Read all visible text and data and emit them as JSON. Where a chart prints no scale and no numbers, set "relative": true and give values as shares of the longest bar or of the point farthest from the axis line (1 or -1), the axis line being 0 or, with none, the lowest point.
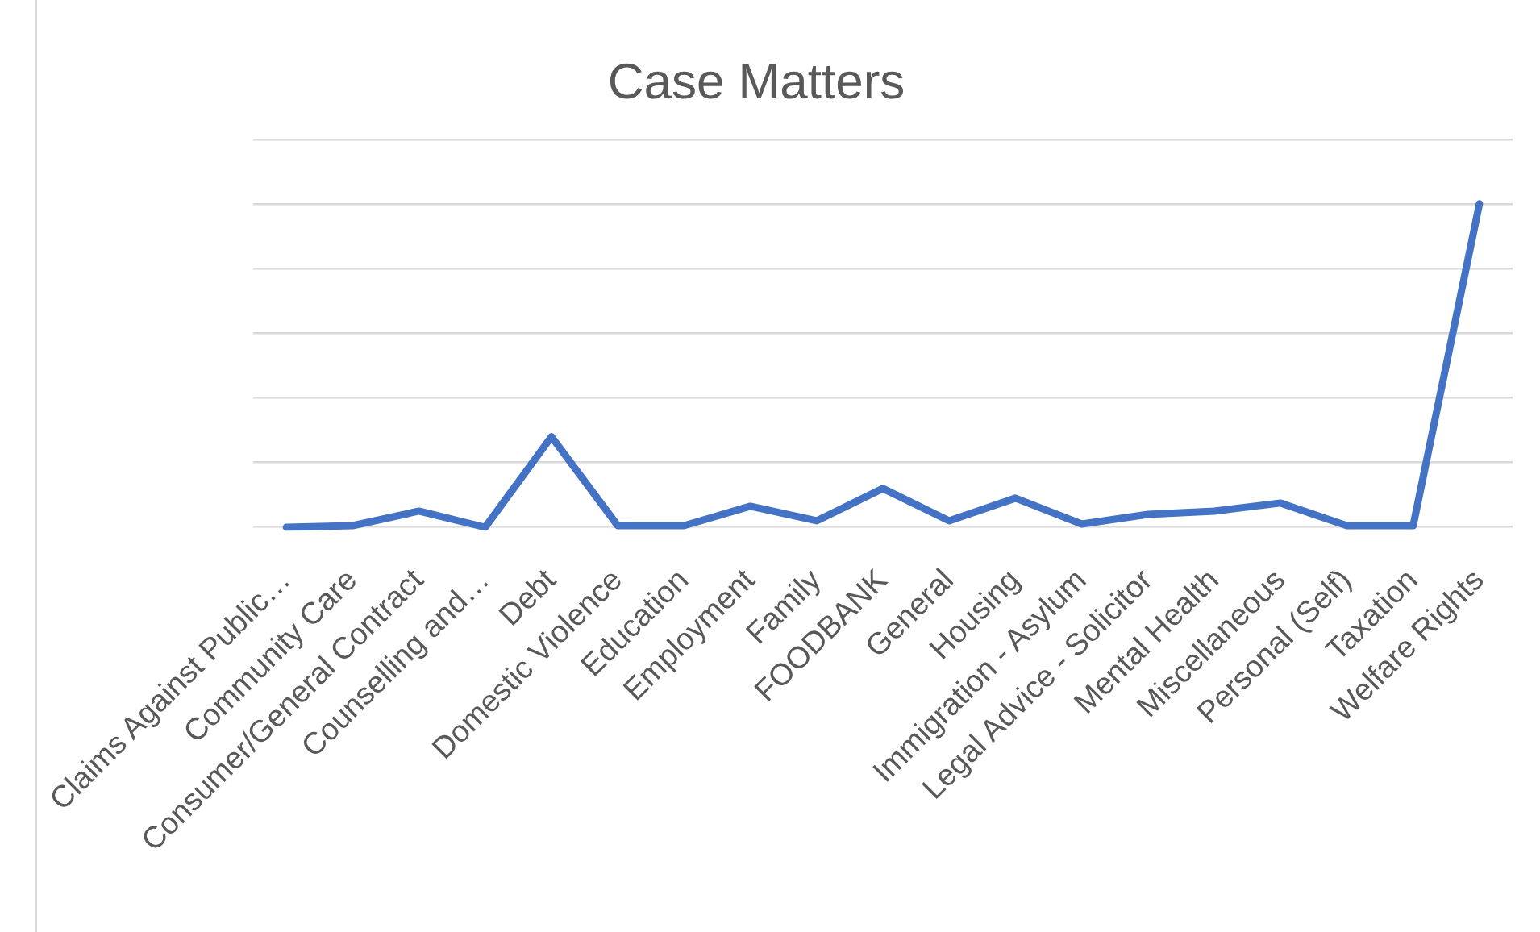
{
  "chart_data": {
    "type": "line",
    "title": "Case Matters",
    "categories": [
      "Claims Against Public…",
      "Community Care",
      "Consumer/General Contract",
      "Counselling and…",
      "Debt",
      "Domestic Violence",
      "Education",
      "Employment",
      "Family",
      "FOODBANK",
      "General",
      "Housing",
      "Immigration - Asylum",
      "Legal Advice - Solicitor",
      "Mental Health",
      "Miscellaneous",
      "Personal (Self)",
      "Taxation",
      "Welfare Rights"
    ],
    "series": [
      {
        "color": "#4472c4",
        "values": [
          0,
          0.005,
          0.05,
          0,
          0.28,
          0.005,
          0.005,
          0.065,
          0.02,
          0.12,
          0.02,
          0.09,
          0.01,
          0.04,
          0.05,
          0.075,
          0.005,
          0.005,
          1
        ]
      }
    ],
    "relative": true,
    "grid": "y",
    "legend": false,
    "marker": "none",
    "line_style": "solid"
  }
}
